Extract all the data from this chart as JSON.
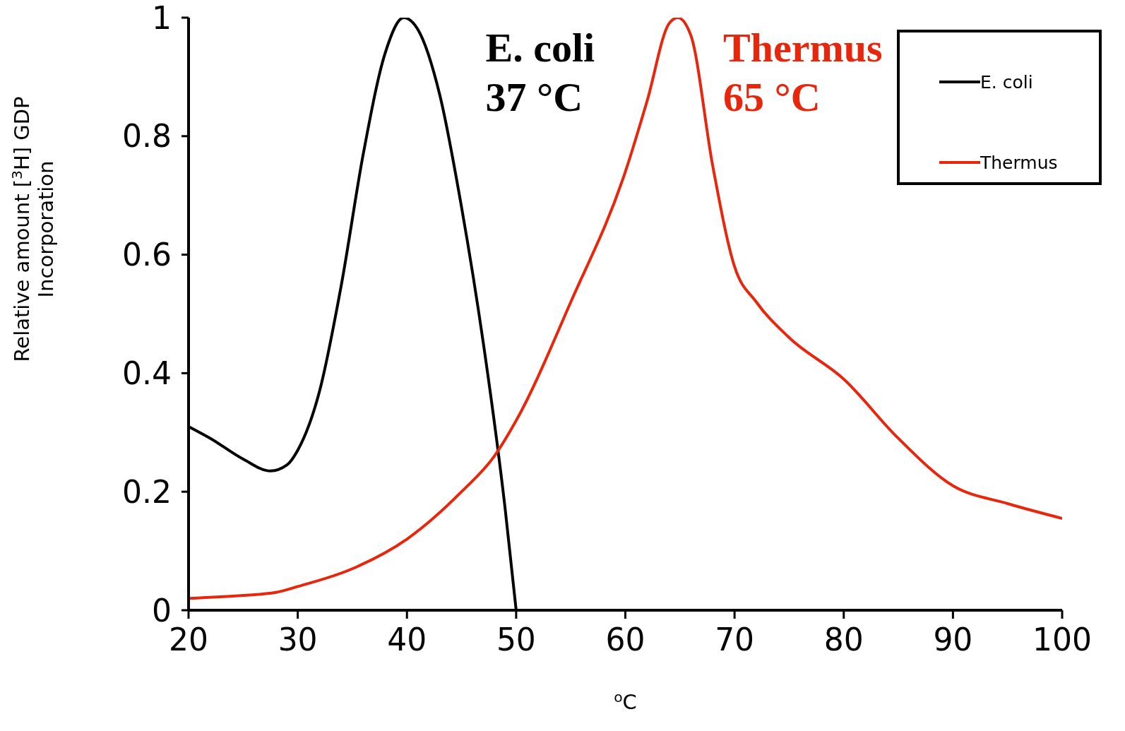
{
  "chart_data": {
    "type": "line",
    "xlabel": "$^{o}$C",
    "ylabel": "Relative amount [$^{3}$H] GDP Incorporation",
    "xlim": [
      20,
      100
    ],
    "xticks": [
      20,
      30,
      40,
      50,
      60,
      70,
      80,
      90,
      100
    ],
    "ylim": [
      0,
      1
    ],
    "yticks": [
      0,
      0.2,
      0.4,
      0.6,
      0.8,
      1
    ],
    "grid": false,
    "legend": "top right",
    "marker": "none",
    "line_style": "solid",
    "annotations": [
      "E. coli 37 °C",
      "Thermus 65 °C"
    ],
    "series": [
      {
        "name": "E. coli",
        "color": "#000000",
        "x": [
          20,
          22,
          25,
          27.5,
          29,
          30,
          32,
          34,
          36,
          38,
          39.7,
          41,
          43,
          45,
          47,
          49,
          50
        ],
        "values": [
          0.31,
          0.29,
          0.255,
          0.235,
          0.245,
          0.27,
          0.37,
          0.55,
          0.77,
          0.94,
          1.0,
          0.98,
          0.87,
          0.68,
          0.45,
          0.17,
          0
        ]
      },
      {
        "name": "Thermus",
        "color": "#e8260c",
        "x": [
          20,
          25,
          28,
          30,
          35,
          40,
          45,
          48,
          50,
          55,
          60,
          62,
          64,
          64.8,
          66,
          68,
          70,
          72,
          75,
          80,
          85,
          90,
          95,
          100
        ],
        "values": [
          0.02,
          0.025,
          0.03,
          0.04,
          0.07,
          0.12,
          0.2,
          0.26,
          0.32,
          0.52,
          0.74,
          0.86,
          0.99,
          1.0,
          0.97,
          0.75,
          0.58,
          0.52,
          0.46,
          0.39,
          0.29,
          0.21,
          0.18,
          0.155
        ]
      }
    ]
  }
}
